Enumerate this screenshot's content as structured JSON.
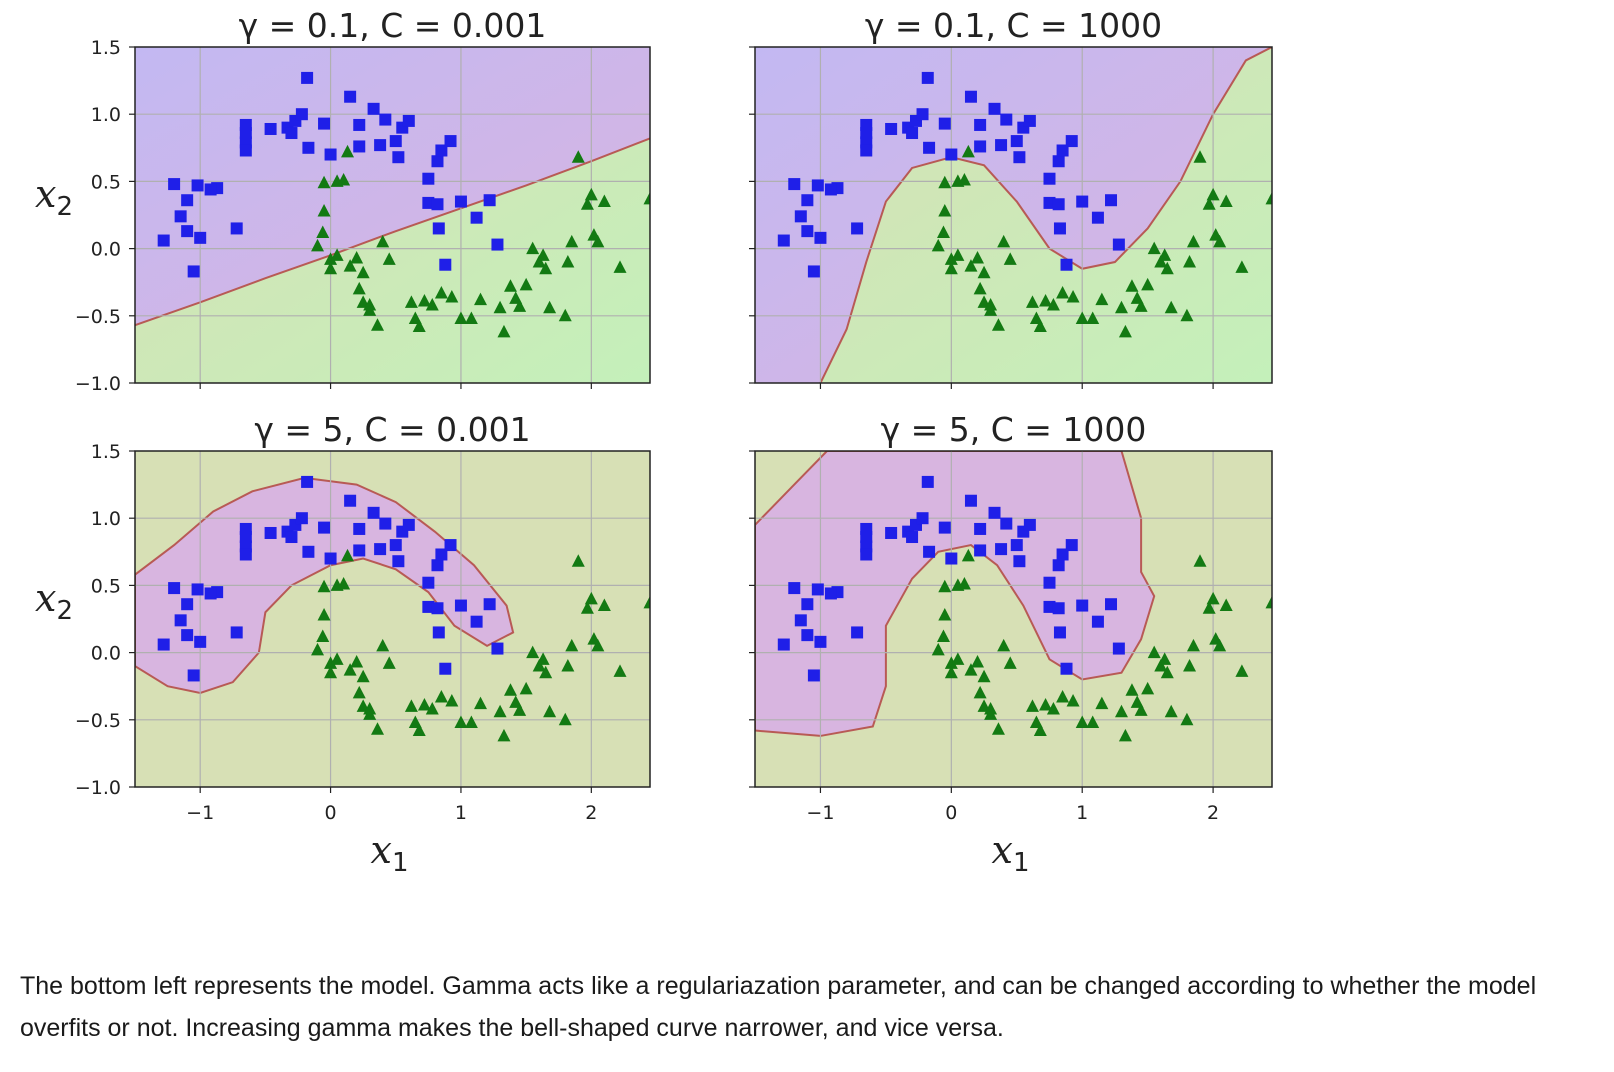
{
  "chart_data": [
    {
      "type": "scatter",
      "title": "γ = 0.1, C = 0.001",
      "xlabel": "",
      "ylabel": "x2",
      "xlim": [
        -1.5,
        2.45
      ],
      "ylim": [
        -1.0,
        1.5
      ],
      "xticks": [
        "−1",
        "0",
        "1",
        "2"
      ],
      "yticks": [
        "1.5",
        "1.0",
        "0.5",
        "0.0",
        "−0.5",
        "−1.0"
      ],
      "grid": true,
      "decision_boundary": [
        [
          -1.5,
          -0.57
        ],
        [
          -1.0,
          -0.4
        ],
        [
          -0.5,
          -0.22
        ],
        [
          0.0,
          -0.05
        ],
        [
          0.5,
          0.13
        ],
        [
          1.0,
          0.3
        ],
        [
          1.5,
          0.47
        ],
        [
          2.0,
          0.65
        ],
        [
          2.45,
          0.82
        ]
      ]
    },
    {
      "type": "scatter",
      "title": "γ = 0.1, C = 1000",
      "xlabel": "",
      "ylabel": "",
      "xlim": [
        -1.5,
        2.45
      ],
      "ylim": [
        -1.0,
        1.5
      ],
      "grid": true,
      "decision_boundary": [
        [
          -1.0,
          -1.0
        ],
        [
          -0.8,
          -0.6
        ],
        [
          -0.65,
          -0.1
        ],
        [
          -0.5,
          0.35
        ],
        [
          -0.3,
          0.6
        ],
        [
          0.0,
          0.68
        ],
        [
          0.25,
          0.62
        ],
        [
          0.5,
          0.35
        ],
        [
          0.75,
          0.0
        ],
        [
          1.0,
          -0.15
        ],
        [
          1.25,
          -0.1
        ],
        [
          1.5,
          0.15
        ],
        [
          1.75,
          0.5
        ],
        [
          2.0,
          1.0
        ],
        [
          2.25,
          1.4
        ],
        [
          2.45,
          1.5
        ]
      ]
    },
    {
      "type": "scatter",
      "title": "γ = 5, C = 0.001",
      "xlabel": "x1",
      "ylabel": "x2",
      "xlim": [
        -1.5,
        2.45
      ],
      "ylim": [
        -1.0,
        1.5
      ],
      "xticks": [
        "−1",
        "0",
        "1",
        "2"
      ],
      "yticks": [
        "1.5",
        "1.0",
        "0.5",
        "0.0",
        "−0.5",
        "−1.0"
      ],
      "grid": true,
      "decision_boundary_closed": [
        [
          -1.5,
          0.58
        ],
        [
          -1.2,
          0.8
        ],
        [
          -0.9,
          1.05
        ],
        [
          -0.6,
          1.2
        ],
        [
          -0.2,
          1.3
        ],
        [
          0.2,
          1.25
        ],
        [
          0.5,
          1.12
        ],
        [
          0.8,
          0.9
        ],
        [
          1.1,
          0.65
        ],
        [
          1.35,
          0.35
        ],
        [
          1.4,
          0.15
        ],
        [
          1.2,
          0.05
        ],
        [
          0.95,
          0.2
        ],
        [
          0.75,
          0.45
        ],
        [
          0.5,
          0.62
        ],
        [
          0.25,
          0.7
        ],
        [
          0.0,
          0.65
        ],
        [
          -0.3,
          0.5
        ],
        [
          -0.5,
          0.3
        ],
        [
          -0.55,
          0.0
        ],
        [
          -0.75,
          -0.22
        ],
        [
          -1.0,
          -0.3
        ],
        [
          -1.25,
          -0.25
        ],
        [
          -1.5,
          -0.1
        ]
      ]
    },
    {
      "type": "scatter",
      "title": "γ = 5, C = 1000",
      "xlabel": "x1",
      "ylabel": "",
      "xticks": [
        "−1",
        "0",
        "1",
        "2"
      ],
      "xlim": [
        -1.5,
        2.45
      ],
      "ylim": [
        -1.0,
        1.5
      ],
      "grid": true,
      "decision_boundary_closed": [
        [
          -1.5,
          0.95
        ],
        [
          -1.2,
          1.25
        ],
        [
          -0.95,
          1.5
        ],
        [
          0.4,
          1.5
        ],
        [
          1.3,
          1.5
        ],
        [
          1.45,
          1.0
        ],
        [
          1.45,
          0.6
        ],
        [
          1.55,
          0.42
        ],
        [
          1.45,
          0.1
        ],
        [
          1.3,
          -0.15
        ],
        [
          1.0,
          -0.2
        ],
        [
          0.75,
          -0.05
        ],
        [
          0.55,
          0.35
        ],
        [
          0.35,
          0.65
        ],
        [
          0.15,
          0.8
        ],
        [
          -0.1,
          0.75
        ],
        [
          -0.3,
          0.55
        ],
        [
          -0.5,
          0.2
        ],
        [
          -0.5,
          -0.25
        ],
        [
          -0.6,
          -0.55
        ],
        [
          -1.0,
          -0.62
        ],
        [
          -1.5,
          -0.58
        ]
      ]
    }
  ],
  "points_blue": [
    [
      -1.28,
      0.06
    ],
    [
      -1.2,
      0.48
    ],
    [
      -1.1,
      0.36
    ],
    [
      -1.02,
      0.47
    ],
    [
      -0.87,
      0.45
    ],
    [
      -1.15,
      0.24
    ],
    [
      -1.1,
      0.13
    ],
    [
      -1.0,
      0.08
    ],
    [
      -0.72,
      0.15
    ],
    [
      -1.05,
      -0.17
    ],
    [
      -0.92,
      0.44
    ],
    [
      -0.65,
      0.79
    ],
    [
      -0.65,
      0.86
    ],
    [
      -0.65,
      0.92
    ],
    [
      -0.65,
      0.73
    ],
    [
      -0.46,
      0.89
    ],
    [
      -0.33,
      0.9
    ],
    [
      -0.3,
      0.86
    ],
    [
      -0.27,
      0.95
    ],
    [
      -0.22,
      1.0
    ],
    [
      -0.18,
      1.27
    ],
    [
      -0.17,
      0.75
    ],
    [
      -0.05,
      0.93
    ],
    [
      0.0,
      0.7
    ],
    [
      0.15,
      1.13
    ],
    [
      0.22,
      0.92
    ],
    [
      0.22,
      0.76
    ],
    [
      0.33,
      1.04
    ],
    [
      0.38,
      0.77
    ],
    [
      0.42,
      0.96
    ],
    [
      0.5,
      0.8
    ],
    [
      0.52,
      0.68
    ],
    [
      0.55,
      0.9
    ],
    [
      0.6,
      0.95
    ],
    [
      0.75,
      0.52
    ],
    [
      0.75,
      0.34
    ],
    [
      0.82,
      0.65
    ],
    [
      0.82,
      0.33
    ],
    [
      0.85,
      0.73
    ],
    [
      0.92,
      0.8
    ],
    [
      0.83,
      0.15
    ],
    [
      0.88,
      -0.12
    ],
    [
      1.0,
      0.35
    ],
    [
      1.12,
      0.23
    ],
    [
      1.22,
      0.36
    ],
    [
      1.28,
      0.03
    ]
  ],
  "points_green": [
    [
      -0.05,
      0.49
    ],
    [
      0.05,
      0.5
    ],
    [
      0.1,
      0.51
    ],
    [
      0.13,
      0.72
    ],
    [
      -0.05,
      0.28
    ],
    [
      -0.06,
      0.12
    ],
    [
      -0.1,
      0.02
    ],
    [
      0.0,
      -0.08
    ],
    [
      0.0,
      -0.15
    ],
    [
      0.05,
      -0.05
    ],
    [
      0.15,
      -0.13
    ],
    [
      0.2,
      -0.07
    ],
    [
      0.25,
      -0.18
    ],
    [
      0.22,
      -0.3
    ],
    [
      0.25,
      -0.4
    ],
    [
      0.3,
      -0.46
    ],
    [
      0.36,
      -0.57
    ],
    [
      0.3,
      -0.42
    ],
    [
      0.4,
      0.05
    ],
    [
      0.45,
      -0.08
    ],
    [
      0.62,
      -0.4
    ],
    [
      0.65,
      -0.52
    ],
    [
      0.68,
      -0.58
    ],
    [
      0.72,
      -0.39
    ],
    [
      0.78,
      -0.42
    ],
    [
      0.85,
      -0.33
    ],
    [
      0.93,
      -0.36
    ],
    [
      1.0,
      -0.52
    ],
    [
      1.08,
      -0.52
    ],
    [
      1.15,
      -0.38
    ],
    [
      1.3,
      -0.44
    ],
    [
      1.33,
      -0.62
    ],
    [
      1.38,
      -0.28
    ],
    [
      1.42,
      -0.37
    ],
    [
      1.45,
      -0.43
    ],
    [
      1.5,
      -0.27
    ],
    [
      1.55,
      0.0
    ],
    [
      1.6,
      -0.1
    ],
    [
      1.63,
      -0.05
    ],
    [
      1.65,
      -0.15
    ],
    [
      1.68,
      -0.44
    ],
    [
      1.8,
      -0.5
    ],
    [
      1.82,
      -0.1
    ],
    [
      1.85,
      0.05
    ],
    [
      1.9,
      0.68
    ],
    [
      1.97,
      0.33
    ],
    [
      2.0,
      0.4
    ],
    [
      2.02,
      0.1
    ],
    [
      2.05,
      0.05
    ],
    [
      2.1,
      0.35
    ],
    [
      2.22,
      -0.14
    ],
    [
      2.45,
      0.37
    ]
  ],
  "caption": "The bottom left represents the model. Gamma acts like a regulariazation parameter, and can be changed according to whether the model overfits or not. Increasing gamma makes the bell-shaped curve narrower, and vice versa.",
  "colors": {
    "blue_region": "#c3b8f2",
    "purple_region": "#d8b5e0",
    "green_region": "#d7e0b5",
    "green_light": "#c4f0ba",
    "boundary": "#b85a55",
    "blue_marker": "#1f1fe8",
    "green_marker": "#137a13",
    "grid": "#b0b0b0"
  }
}
